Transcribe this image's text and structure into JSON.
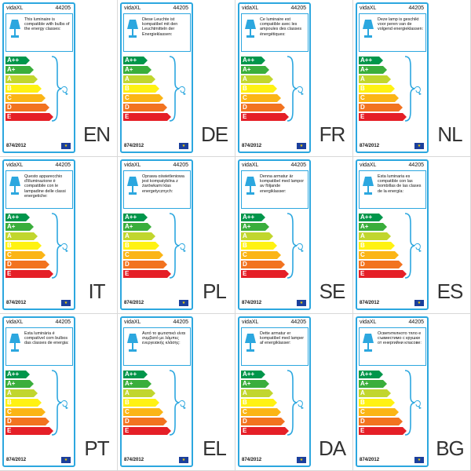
{
  "labels": [
    {
      "lang": "EN",
      "brand": "vidaXL",
      "model": "44205",
      "text": "This luminaire is compatible with bulbs of the energy classes:",
      "regulation": "874/2012"
    },
    {
      "lang": "DE",
      "brand": "vidaXL",
      "model": "44205",
      "text": "Diese Leuchte ist kompatibel mit den Leuchtmitteln der Energieklassen:",
      "regulation": "874/2012"
    },
    {
      "lang": "FR",
      "brand": "vidaXL",
      "model": "44205",
      "text": "Ce luminaire est compatible avec les ampoules des classes énergétiques:",
      "regulation": "874/2012"
    },
    {
      "lang": "NL",
      "brand": "vidaXL",
      "model": "44205",
      "text": "Deze lamp is geschikt voor peren van de volgend energieklassen:",
      "regulation": "874/2012"
    },
    {
      "lang": "IT",
      "brand": "vidaXL",
      "model": "44205",
      "text": "Questo apparecchio d'illuminazione è compatibile con le lampadine delle classi energetiche:",
      "regulation": "874/2012"
    },
    {
      "lang": "PL",
      "brand": "vidaXL",
      "model": "44205",
      "text": "Oprawa oświetleniowa jest kompatybilna z żarówkami klas energetycznych:",
      "regulation": "874/2012"
    },
    {
      "lang": "SE",
      "brand": "vidaXL",
      "model": "44205",
      "text": "Denna armatur är kompatibel med lampor av följande energiklasser:",
      "regulation": "874/2012"
    },
    {
      "lang": "ES",
      "brand": "vidaXL",
      "model": "44205",
      "text": "Esta luminaria es compatible con las bombillas de las clases de la energía:",
      "regulation": "874/2012"
    },
    {
      "lang": "PT",
      "brand": "vidaXL",
      "model": "44205",
      "text": "Esta luminária é compatível com bulbos das classes de energia:",
      "regulation": "874/2012"
    },
    {
      "lang": "EL",
      "brand": "vidaXL",
      "model": "44205",
      "text": "Αυτό το φωτιστικό είναι συμβατό με λάμπες ενεργειακής κλάσης:",
      "regulation": "874/2012"
    },
    {
      "lang": "DA",
      "brand": "vidaXL",
      "model": "44205",
      "text": "Dette armatur er kompatibel med lamper af energiklasser:",
      "regulation": "874/2012"
    },
    {
      "lang": "BG",
      "brand": "vidaXL",
      "model": "44205",
      "text": "Осветителното тяло е съвместимо с крушки от енергийни класове:",
      "regulation": "874/2012"
    }
  ],
  "energy_classes": [
    {
      "label": "A++",
      "color": "#00964b"
    },
    {
      "label": "A+",
      "color": "#3aae3c"
    },
    {
      "label": "A",
      "color": "#c1d62e"
    },
    {
      "label": "B",
      "color": "#fff212"
    },
    {
      "label": "C",
      "color": "#fbb516"
    },
    {
      "label": "D",
      "color": "#f27320"
    },
    {
      "label": "E",
      "color": "#e51f27"
    }
  ],
  "colors": {
    "border": "#2ca7df",
    "eu_flag": "#1b3f9c",
    "eu_stars": "#f6d100"
  },
  "icons": {
    "lamp": "table-lamp-icon",
    "flag": "eu-flag-icon"
  }
}
